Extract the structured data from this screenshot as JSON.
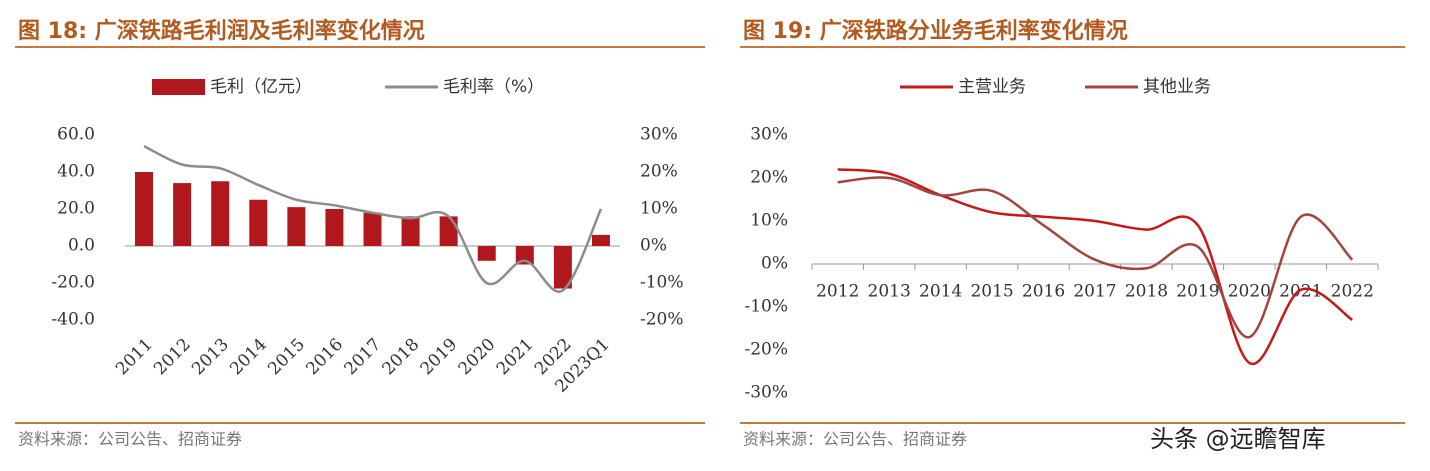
{
  "chart_data": [
    {
      "type": "bar",
      "title": "图 18:  广深铁路毛利润及毛利率变化情况",
      "categories": [
        "2011",
        "2012",
        "2013",
        "2014",
        "2015",
        "2016",
        "2017",
        "2018",
        "2019",
        "2020",
        "2021",
        "2022",
        "2023Q1"
      ],
      "series": [
        {
          "name": "毛利（亿元）",
          "type": "bar",
          "color": "#b0181e",
          "values": [
            40,
            34,
            35,
            25,
            21,
            20,
            18,
            16,
            16,
            -8,
            -10,
            -23,
            6
          ]
        },
        {
          "name": "毛利率（%）",
          "type": "line",
          "axis": "y2",
          "color": "#8c8c8c",
          "values": [
            27,
            22,
            21,
            16.5,
            12.5,
            11,
            9,
            7.5,
            8,
            -10,
            -4,
            -12,
            10
          ]
        }
      ],
      "ylim": [
        -40,
        60
      ],
      "yticks": [
        {
          "value": -40,
          "label": "-40.0"
        },
        {
          "value": -20,
          "label": "-20.0"
        },
        {
          "value": 0,
          "label": "0.0"
        },
        {
          "value": 20,
          "label": "20.0"
        },
        {
          "value": 40,
          "label": "40.0"
        },
        {
          "value": 60,
          "label": "60.0"
        }
      ],
      "y2lim": [
        -20,
        30
      ],
      "y2ticks": [
        {
          "value": -20,
          "label": "-20%"
        },
        {
          "value": -10,
          "label": "-10%"
        },
        {
          "value": 0,
          "label": "0%"
        },
        {
          "value": 10,
          "label": "10%"
        },
        {
          "value": 20,
          "label": "20%"
        },
        {
          "value": 30,
          "label": "30%"
        }
      ],
      "source": "资料来源：公司公告、招商证券"
    },
    {
      "type": "line",
      "title": "图 19:  广深铁路分业务毛利率变化情况",
      "categories": [
        "2012",
        "2013",
        "2014",
        "2015",
        "2016",
        "2017",
        "2018",
        "2019",
        "2020",
        "2021",
        "2022"
      ],
      "series": [
        {
          "name": "主营业务",
          "color": "#c41a1a",
          "values": [
            22,
            21,
            16,
            12,
            11,
            10,
            8,
            9,
            -23,
            -6,
            -13
          ]
        },
        {
          "name": "其他业务",
          "color": "#a3453f",
          "values": [
            19,
            20,
            16,
            17,
            9,
            1,
            -1,
            4,
            -17,
            11,
            1
          ]
        }
      ],
      "ylim": [
        -30,
        30
      ],
      "yticks": [
        {
          "value": -30,
          "label": "-30%"
        },
        {
          "value": -20,
          "label": "-20%"
        },
        {
          "value": -10,
          "label": "-10%"
        },
        {
          "value": 0,
          "label": "0%"
        },
        {
          "value": 10,
          "label": "10%"
        },
        {
          "value": 20,
          "label": "20%"
        },
        {
          "value": 30,
          "label": "30%"
        }
      ],
      "source": "资料来源：公司公告、招商证券"
    }
  ],
  "watermark": "头条 @远瞻智库"
}
